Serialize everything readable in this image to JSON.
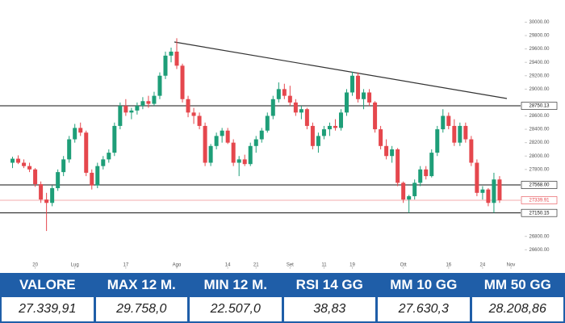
{
  "chart_data": {
    "type": "candlestick",
    "up_color": "#1e9e78",
    "down_color": "#e5474d",
    "open": [
      27900,
      27960,
      27900,
      27850,
      27800,
      27580,
      27350,
      27300,
      27520,
      27760,
      27950,
      28250,
      28420,
      28350,
      27750,
      27560,
      27850,
      27950,
      28050,
      28450,
      28750,
      28650,
      28680,
      28750,
      28820,
      28780,
      28900,
      29200,
      29500,
      29560,
      29350,
      28850,
      28650,
      28600,
      28450,
      27900,
      28150,
      28300,
      28380,
      28200,
      27900,
      27950,
      27880,
      28150,
      28250,
      28380,
      28600,
      28850,
      29000,
      28900,
      28800,
      28650,
      28700,
      28450,
      28150,
      28300,
      28400,
      28450,
      28420,
      28650,
      28950,
      29200,
      28850,
      28950,
      28800,
      28400,
      28150,
      28000,
      28100,
      27600,
      27350,
      27400,
      27600,
      27800,
      27700,
      28050,
      28400,
      28600,
      28450,
      28200,
      28450,
      28250,
      27900,
      27450,
      27500,
      27300,
      27650
    ],
    "high": [
      27990,
      28010,
      27950,
      27900,
      27820,
      27620,
      27450,
      27560,
      27800,
      28000,
      28300,
      28480,
      28500,
      28380,
      27800,
      27900,
      28000,
      28100,
      28500,
      28800,
      28850,
      28720,
      28800,
      28880,
      28900,
      28960,
      29250,
      29560,
      29620,
      29760,
      29380,
      28900,
      28720,
      28650,
      28500,
      28180,
      28350,
      28420,
      28420,
      28250,
      28000,
      28020,
      28200,
      28300,
      28420,
      28650,
      28900,
      29100,
      29080,
      29050,
      28850,
      28750,
      28720,
      28500,
      28350,
      28450,
      28500,
      28550,
      28700,
      29000,
      29260,
      29250,
      29000,
      29000,
      28820,
      28450,
      28250,
      28150,
      28120,
      27620,
      27420,
      27650,
      27850,
      27850,
      28100,
      28450,
      28700,
      28650,
      28550,
      28500,
      28500,
      28300,
      27950,
      27550,
      27520,
      27750,
      27700
    ],
    "low": [
      27820,
      27880,
      27820,
      27760,
      27540,
      27300,
      26880,
      27250,
      27480,
      27700,
      27900,
      28200,
      28300,
      27700,
      27500,
      27520,
      27800,
      27900,
      28000,
      28400,
      28600,
      28550,
      28620,
      28700,
      28720,
      28750,
      28850,
      29150,
      29400,
      29300,
      28800,
      28580,
      28480,
      28400,
      27850,
      27850,
      28100,
      28200,
      28180,
      27850,
      27700,
      27850,
      27850,
      28050,
      28200,
      28350,
      28550,
      28800,
      28850,
      28750,
      28600,
      28550,
      28400,
      28100,
      28050,
      28250,
      28300,
      28380,
      28380,
      28600,
      28900,
      28800,
      28700,
      28750,
      28350,
      28100,
      27950,
      27900,
      27550,
      27300,
      27150,
      27350,
      27550,
      27650,
      27680,
      28000,
      28350,
      28400,
      28150,
      28150,
      28200,
      27850,
      27400,
      27350,
      27250,
      27150,
      27300
    ],
    "close": [
      27960,
      27900,
      27850,
      27800,
      27580,
      27350,
      27300,
      27520,
      27760,
      27950,
      28250,
      28420,
      28350,
      27750,
      27560,
      27850,
      27950,
      28050,
      28450,
      28750,
      28650,
      28680,
      28750,
      28820,
      28780,
      28900,
      29200,
      29500,
      29560,
      29350,
      28850,
      28650,
      28600,
      28450,
      27900,
      28150,
      28300,
      28380,
      28200,
      27900,
      27950,
      27880,
      28150,
      28250,
      28380,
      28600,
      28850,
      29000,
      28900,
      28800,
      28650,
      28700,
      28450,
      28150,
      28300,
      28400,
      28450,
      28420,
      28650,
      28950,
      29200,
      28850,
      28950,
      28800,
      28400,
      28150,
      28000,
      28100,
      27600,
      27350,
      27400,
      27600,
      27800,
      27700,
      28050,
      28400,
      28600,
      28450,
      28200,
      28450,
      28250,
      27900,
      27450,
      27500,
      27300,
      27650,
      27340
    ],
    "xlim": [
      -1.5,
      89
    ],
    "xticks": [
      {
        "value": 4,
        "label": "20"
      },
      {
        "value": 11,
        "label": "Lug"
      },
      {
        "value": 20,
        "label": "17"
      },
      {
        "value": 29,
        "label": "Ago"
      },
      {
        "value": 38,
        "label": "14"
      },
      {
        "value": 43,
        "label": "21"
      },
      {
        "value": 49,
        "label": "Set"
      },
      {
        "value": 55,
        "label": "11"
      },
      {
        "value": 60,
        "label": "19"
      },
      {
        "value": 69,
        "label": "Ott"
      },
      {
        "value": 77,
        "label": "16"
      },
      {
        "value": 83,
        "label": "24"
      },
      {
        "value": 88,
        "label": "Nov"
      }
    ],
    "ylim": [
      26350,
      30090
    ],
    "yticks": [
      {
        "value": 30000,
        "label": "30000.00"
      },
      {
        "value": 29800,
        "label": "29800.00"
      },
      {
        "value": 29600,
        "label": "29600.00"
      },
      {
        "value": 29400,
        "label": "29400.00"
      },
      {
        "value": 29200,
        "label": "29200.00"
      },
      {
        "value": 29000,
        "label": "29000.00"
      },
      {
        "value": 28600,
        "label": "28600.00"
      },
      {
        "value": 28400,
        "label": "28400.00"
      },
      {
        "value": 28200,
        "label": "28200.00"
      },
      {
        "value": 28000,
        "label": "28000.00"
      },
      {
        "value": 27800,
        "label": "27800.00"
      },
      {
        "value": 26800,
        "label": "26800.00"
      },
      {
        "value": 26600,
        "label": "26600.00"
      }
    ],
    "levels": [
      {
        "value": 28750.13,
        "label": "28750.13",
        "color": "#111111"
      },
      {
        "value": 27568,
        "label": "27568.00",
        "color": "#111111"
      },
      {
        "value": 27339.91,
        "label": "27339.91",
        "color": "#e5474d"
      },
      {
        "value": 27150.15,
        "label": "27150.15",
        "color": "#111111"
      }
    ]
  },
  "table": {
    "headers": [
      "VALORE",
      "MAX 12 M.",
      "MIN 12 M.",
      "RSI 14 GG",
      "MM 10 GG",
      "MM 50 GG"
    ],
    "values": [
      "27.339,91",
      "29.758,0",
      "22.507,0",
      "38,83",
      "27.630,3",
      "28.208,86"
    ]
  }
}
